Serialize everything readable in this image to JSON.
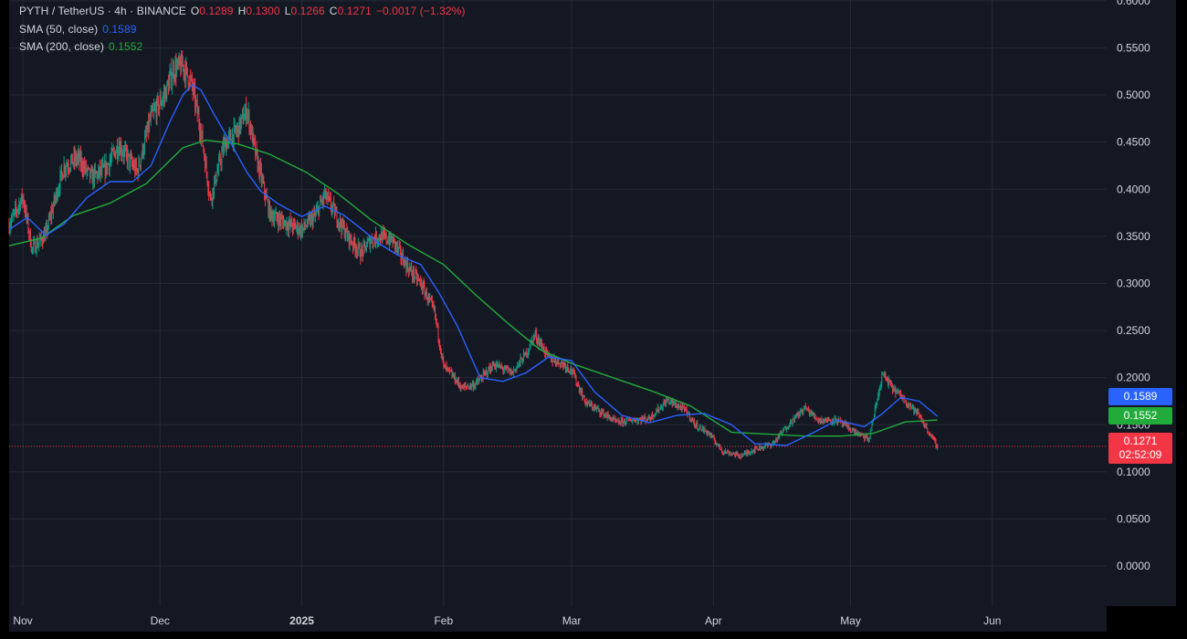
{
  "header": {
    "symbol": "PYTH / TetherUS · 4h · BINANCE",
    "o_label": "O",
    "o_value": "0.1289",
    "h_label": "H",
    "h_value": "0.1300",
    "l_label": "L",
    "l_value": "0.1266",
    "c_label": "C",
    "c_value": "0.1271",
    "change": "−0.0017 (−1.32%)"
  },
  "indicators": [
    {
      "label": "SMA (50, close)",
      "value": "0.1589",
      "color": "#2962ff"
    },
    {
      "label": "SMA (200, close)",
      "value": "0.1552",
      "color": "#22ab3b"
    }
  ],
  "price_tags": {
    "sma50": "0.1589",
    "sma200": "0.1552",
    "last": "0.1271",
    "countdown": "02:52:09"
  },
  "colors": {
    "background": "#141823",
    "grid": "#252a37",
    "up": "#089981",
    "down": "#f23645",
    "sma50": "#2962ff",
    "sma200": "#22ab3b",
    "text": "#d1d4dc"
  },
  "chart_data": {
    "type": "line",
    "title": "PYTH / TetherUS · 4h · BINANCE",
    "y_ticks": [
      "0.0000",
      "0.0500",
      "0.1000",
      "0.1500",
      "0.2000",
      "0.2500",
      "0.3000",
      "0.3500",
      "0.4000",
      "0.4500",
      "0.5000",
      "0.5500",
      "0.6000"
    ],
    "x_ticks": [
      {
        "label": "Nov",
        "date": "2024-11-01"
      },
      {
        "label": "Dec",
        "date": "2024-12-01"
      },
      {
        "label": "2025",
        "date": "2025-01-01",
        "bold": true
      },
      {
        "label": "Feb",
        "date": "2025-02-01"
      },
      {
        "label": "Mar",
        "date": "2025-03-01"
      },
      {
        "label": "Apr",
        "date": "2025-04-01"
      },
      {
        "label": "May",
        "date": "2025-05-01"
      },
      {
        "label": "Jun",
        "date": "2025-06-01"
      }
    ],
    "x_range": [
      "2024-10-29",
      "2025-06-26"
    ],
    "ylim": [
      -0.0425,
      0.6008
    ],
    "last_price": 0.1271,
    "grid": true,
    "series": [
      {
        "name": "PYTH / TetherUS",
        "style": "candles",
        "x": [
          "2024-10-29",
          "2024-11-01",
          "2024-11-03",
          "2024-11-06",
          "2024-11-08",
          "2024-11-10",
          "2024-11-13",
          "2024-11-16",
          "2024-11-19",
          "2024-11-22",
          "2024-11-26",
          "2024-11-29",
          "2024-12-02",
          "2024-12-04",
          "2024-12-06",
          "2024-12-08",
          "2024-12-10",
          "2024-12-12",
          "2024-12-15",
          "2024-12-18",
          "2024-12-20",
          "2024-12-22",
          "2024-12-25",
          "2024-12-28",
          "2025-01-01",
          "2025-01-04",
          "2025-01-06",
          "2025-01-08",
          "2025-01-11",
          "2025-01-14",
          "2025-01-16",
          "2025-01-18",
          "2025-01-21",
          "2025-01-24",
          "2025-01-27",
          "2025-01-30",
          "2025-02-01",
          "2025-02-03",
          "2025-02-05",
          "2025-02-08",
          "2025-02-12",
          "2025-02-16",
          "2025-02-19",
          "2025-02-21",
          "2025-02-24",
          "2025-02-27",
          "2025-03-01",
          "2025-03-04",
          "2025-03-07",
          "2025-03-11",
          "2025-03-14",
          "2025-03-18",
          "2025-03-22",
          "2025-03-26",
          "2025-03-28",
          "2025-03-31",
          "2025-04-03",
          "2025-04-07",
          "2025-04-10",
          "2025-04-14",
          "2025-04-17",
          "2025-04-21",
          "2025-04-24",
          "2025-04-28",
          "2025-05-01",
          "2025-05-05",
          "2025-05-08",
          "2025-05-10",
          "2025-05-13",
          "2025-05-16",
          "2025-05-18",
          "2025-05-20"
        ],
        "values": [
          0.362,
          0.392,
          0.336,
          0.352,
          0.389,
          0.424,
          0.433,
          0.412,
          0.421,
          0.447,
          0.418,
          0.476,
          0.5,
          0.527,
          0.531,
          0.51,
          0.46,
          0.389,
          0.446,
          0.463,
          0.484,
          0.435,
          0.374,
          0.365,
          0.357,
          0.372,
          0.394,
          0.377,
          0.35,
          0.332,
          0.346,
          0.35,
          0.345,
          0.318,
          0.3,
          0.27,
          0.212,
          0.202,
          0.189,
          0.193,
          0.214,
          0.205,
          0.225,
          0.246,
          0.221,
          0.215,
          0.208,
          0.174,
          0.165,
          0.152,
          0.155,
          0.157,
          0.176,
          0.165,
          0.15,
          0.141,
          0.122,
          0.117,
          0.124,
          0.13,
          0.148,
          0.168,
          0.155,
          0.155,
          0.145,
          0.134,
          0.204,
          0.19,
          0.176,
          0.16,
          0.143,
          0.127
        ]
      },
      {
        "name": "SMA (50, close)",
        "style": "line",
        "x": [
          "2024-10-29",
          "2024-11-02",
          "2024-11-06",
          "2024-11-10",
          "2024-11-15",
          "2024-11-20",
          "2024-11-25",
          "2024-11-29",
          "2024-12-03",
          "2024-12-06",
          "2024-12-08",
          "2024-12-10",
          "2024-12-13",
          "2024-12-16",
          "2024-12-20",
          "2024-12-23",
          "2024-12-27",
          "2025-01-01",
          "2025-01-06",
          "2025-01-10",
          "2025-01-14",
          "2025-01-18",
          "2025-01-22",
          "2025-01-27",
          "2025-01-31",
          "2025-02-04",
          "2025-02-09",
          "2025-02-14",
          "2025-02-19",
          "2025-02-24",
          "2025-03-01",
          "2025-03-06",
          "2025-03-12",
          "2025-03-18",
          "2025-03-24",
          "2025-03-30",
          "2025-04-05",
          "2025-04-10",
          "2025-04-17",
          "2025-04-23",
          "2025-04-28",
          "2025-05-04",
          "2025-05-08",
          "2025-05-12",
          "2025-05-16",
          "2025-05-20"
        ],
        "values": [
          0.357,
          0.37,
          0.351,
          0.363,
          0.391,
          0.408,
          0.408,
          0.425,
          0.47,
          0.5,
          0.511,
          0.505,
          0.478,
          0.453,
          0.418,
          0.398,
          0.384,
          0.371,
          0.382,
          0.373,
          0.358,
          0.342,
          0.33,
          0.32,
          0.29,
          0.255,
          0.2,
          0.196,
          0.205,
          0.222,
          0.218,
          0.185,
          0.16,
          0.152,
          0.16,
          0.162,
          0.15,
          0.13,
          0.128,
          0.142,
          0.155,
          0.148,
          0.162,
          0.179,
          0.175,
          0.159
        ]
      },
      {
        "name": "SMA (200, close)",
        "style": "line",
        "x": [
          "2024-10-29",
          "2024-11-05",
          "2024-11-12",
          "2024-11-20",
          "2024-11-28",
          "2024-12-06",
          "2024-12-11",
          "2024-12-18",
          "2024-12-25",
          "2025-01-02",
          "2025-01-09",
          "2025-01-16",
          "2025-01-24",
          "2025-02-01",
          "2025-02-08",
          "2025-02-15",
          "2025-02-22",
          "2025-03-01",
          "2025-03-10",
          "2025-03-19",
          "2025-03-27",
          "2025-04-05",
          "2025-04-13",
          "2025-04-21",
          "2025-04-29",
          "2025-05-06",
          "2025-05-13",
          "2025-05-20"
        ],
        "values": [
          0.34,
          0.348,
          0.372,
          0.385,
          0.406,
          0.444,
          0.452,
          0.448,
          0.437,
          0.418,
          0.395,
          0.368,
          0.342,
          0.32,
          0.288,
          0.258,
          0.23,
          0.215,
          0.2,
          0.185,
          0.17,
          0.142,
          0.14,
          0.138,
          0.138,
          0.141,
          0.153,
          0.155
        ]
      }
    ]
  }
}
